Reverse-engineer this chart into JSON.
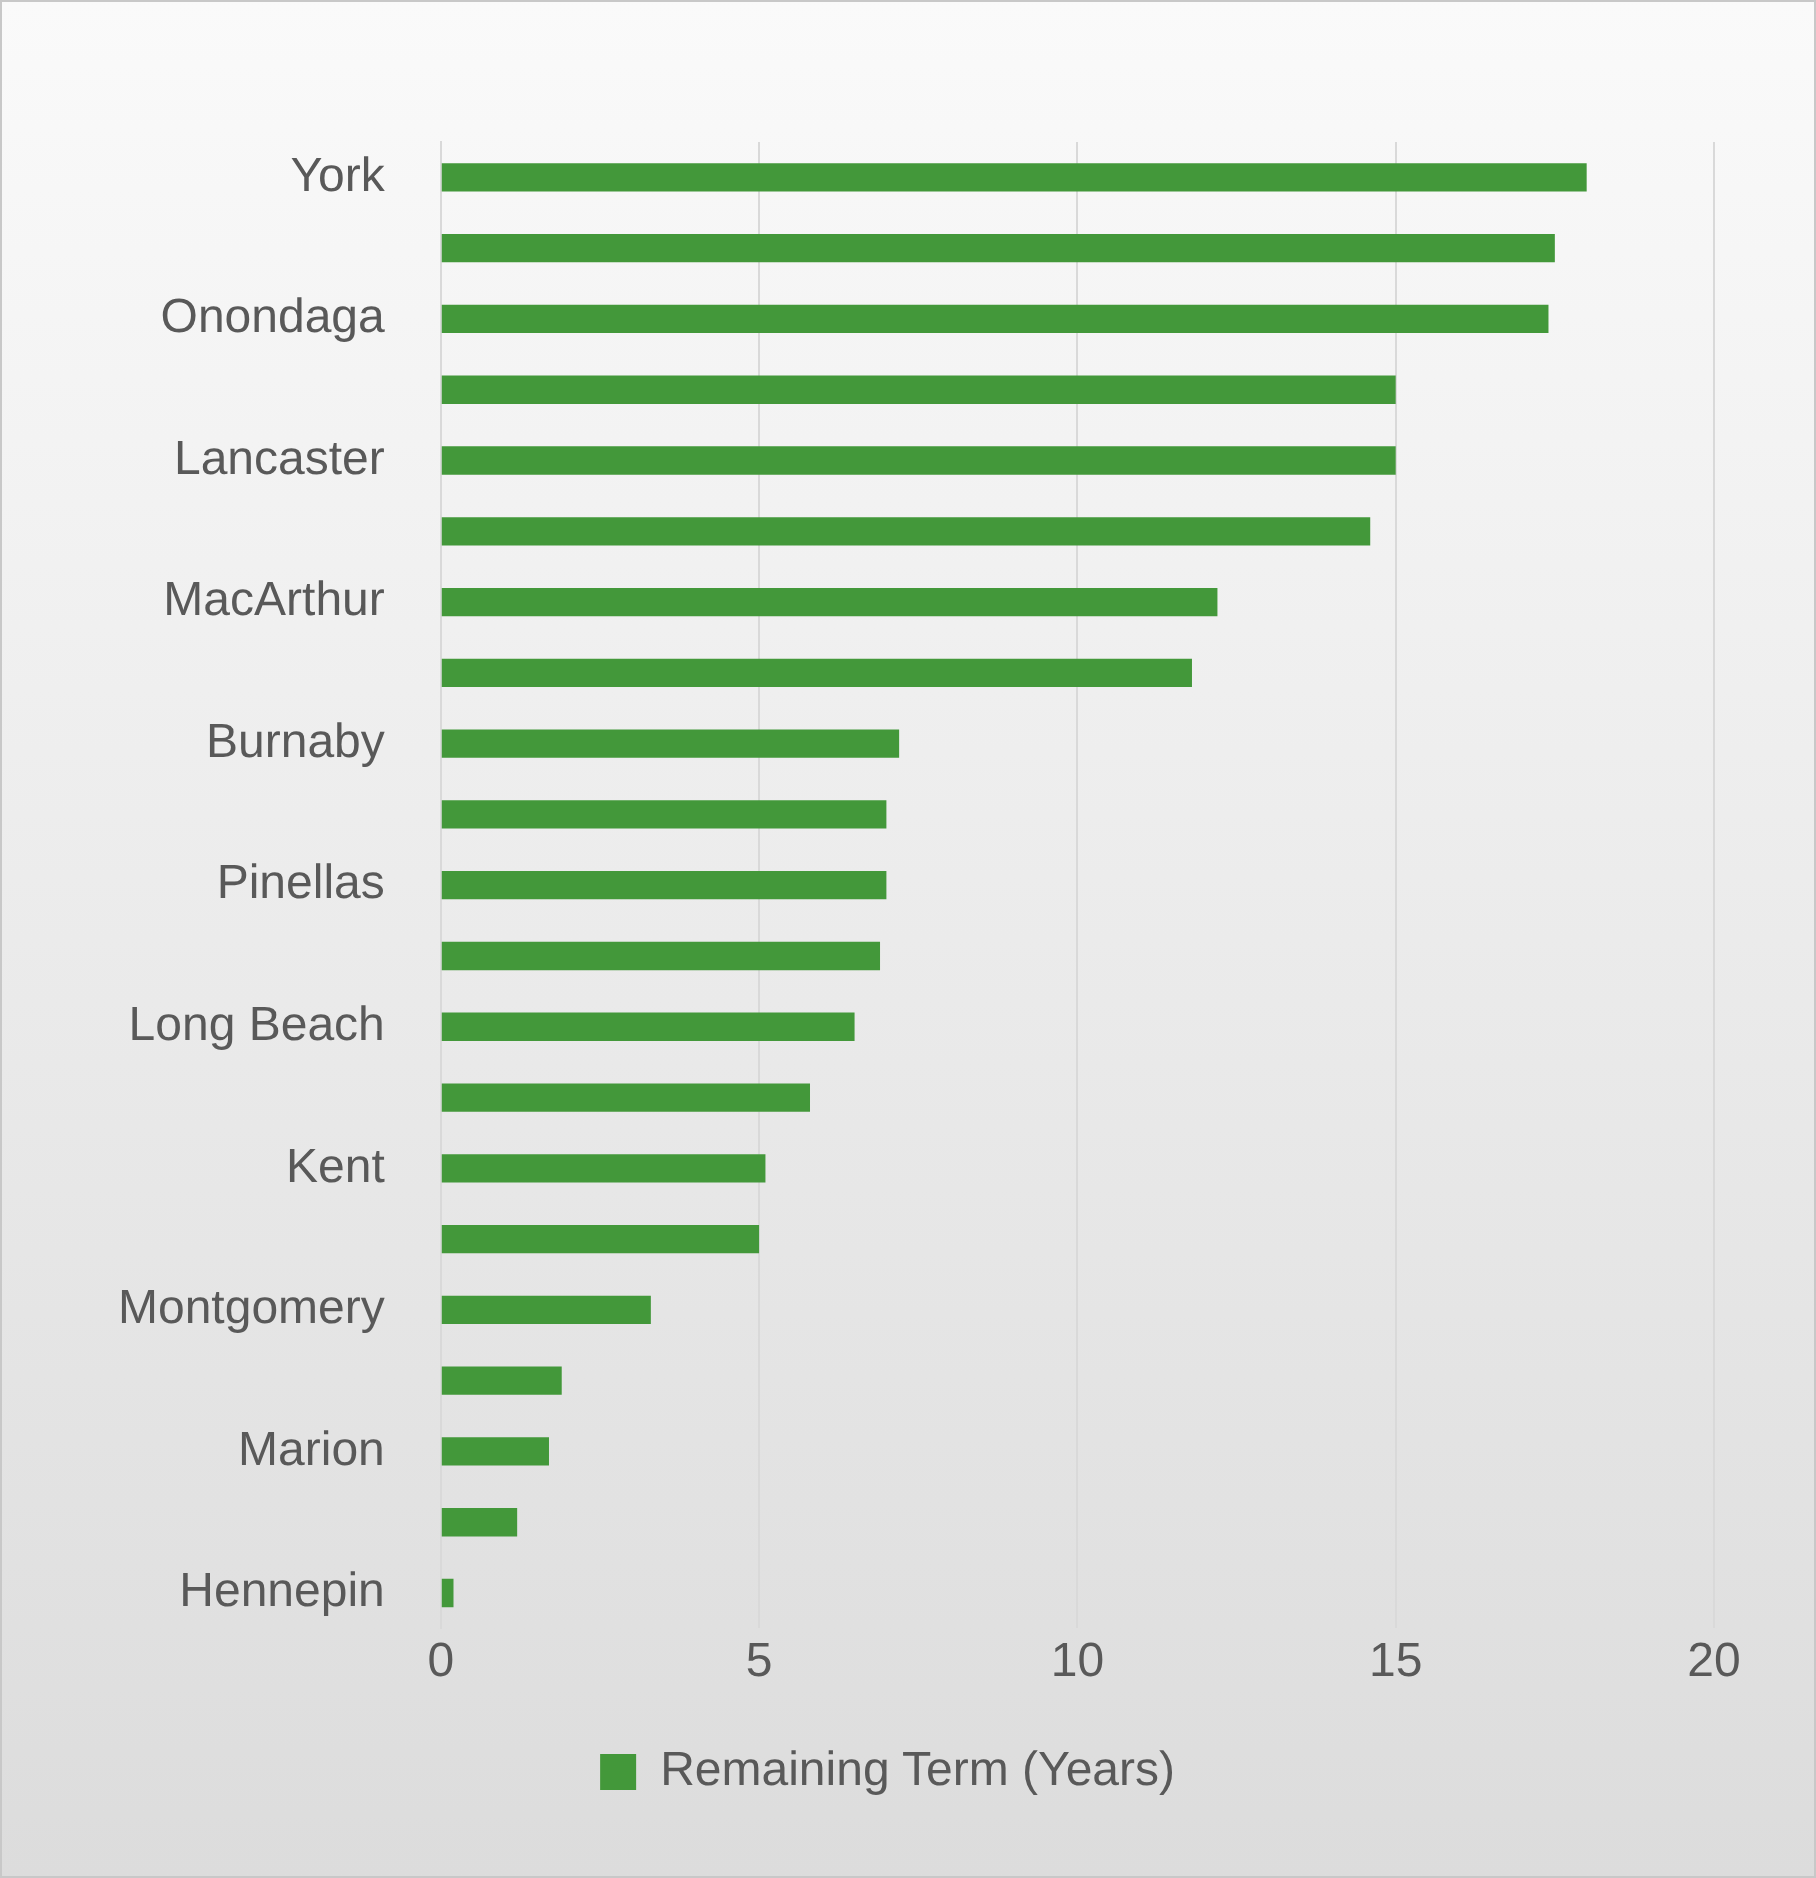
{
  "chart_data": {
    "type": "bar",
    "orientation": "horizontal",
    "categories": [
      "York",
      null,
      "Onondaga",
      null,
      "Lancaster",
      null,
      "MacArthur",
      null,
      "Burnaby",
      null,
      "Pinellas",
      null,
      "Long Beach",
      null,
      "Kent",
      null,
      "Montgomery",
      null,
      "Marion",
      null,
      "Hennepin"
    ],
    "series": [
      {
        "name": "Remaining Term (Years)",
        "color": "#43983a",
        "values": [
          18,
          17.5,
          17.4,
          15,
          15,
          14.6,
          12.2,
          11.8,
          7.2,
          7,
          7,
          6.9,
          6.5,
          5.8,
          5.1,
          5,
          3.3,
          1.9,
          1.7,
          1.2,
          0.2
        ]
      }
    ],
    "xlim": [
      0,
      20
    ],
    "xticks": [
      0,
      5,
      10,
      15,
      20
    ],
    "grid": "x",
    "legend": "bottom"
  }
}
